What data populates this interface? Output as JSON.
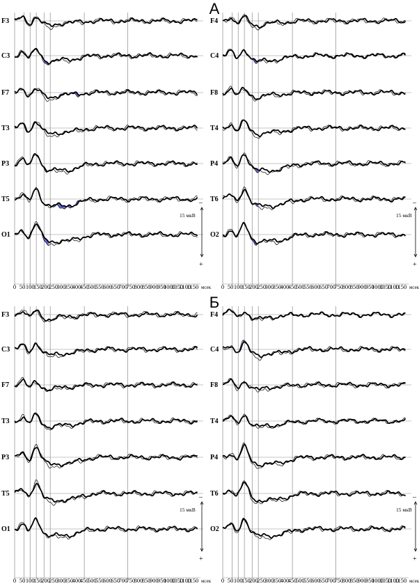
{
  "chart_data": {
    "type": "line",
    "xlim": [
      0,
      1200
    ],
    "x_ticks": [
      0,
      50,
      100,
      150,
      200,
      250,
      300,
      350,
      400,
      450,
      500,
      550,
      600,
      650,
      700,
      750,
      800,
      850,
      900,
      950,
      1000,
      1050,
      1100,
      1150
    ],
    "x_unit": "мсек",
    "marker_lines_ms": [
      60,
      100,
      140,
      190,
      230,
      450,
      730
    ],
    "scale_text": "15 мкВ",
    "polarity_top": "–",
    "polarity_bottom": "+",
    "sections": [
      {
        "label": "А",
        "panels": [
          {
            "side": "left",
            "channels": [
              {
                "name": "F3",
                "shade": []
              },
              {
                "name": "C3",
                "shade": [
                  [
                    190,
                    230
                  ]
                ]
              },
              {
                "name": "F7",
                "shade": [
                  [
                    280,
                    440
                  ]
                ]
              },
              {
                "name": "T3",
                "shade": []
              },
              {
                "name": "P3",
                "shade": [
                  [
                    170,
                    220
                  ]
                ]
              },
              {
                "name": "T5",
                "shade": [
                  [
                    230,
                    420
                  ]
                ]
              },
              {
                "name": "O1",
                "shade": [
                  [
                    150,
                    220
                  ]
                ]
              }
            ]
          },
          {
            "side": "right",
            "channels": [
              {
                "name": "F4",
                "shade": []
              },
              {
                "name": "C4",
                "shade": [
                  [
                    160,
                    230
                  ]
                ]
              },
              {
                "name": "F8",
                "shade": []
              },
              {
                "name": "T4",
                "shade": []
              },
              {
                "name": "P4",
                "shade": [
                  [
                    190,
                    230
                  ]
                ]
              },
              {
                "name": "T6",
                "shade": [
                  [
                    190,
                    230
                  ]
                ]
              },
              {
                "name": "O2",
                "shade": [
                  [
                    150,
                    230
                  ]
                ]
              }
            ]
          }
        ]
      },
      {
        "label": "Б",
        "panels": [
          {
            "side": "left",
            "channels": [
              {
                "name": "F3",
                "shade": []
              },
              {
                "name": "C3",
                "shade": []
              },
              {
                "name": "F7",
                "shade": []
              },
              {
                "name": "T3",
                "shade": [
                  [
                    100,
                    150
                  ]
                ]
              },
              {
                "name": "P3",
                "shade": []
              },
              {
                "name": "T5",
                "shade": []
              },
              {
                "name": "O1",
                "shade": []
              }
            ]
          },
          {
            "side": "right",
            "channels": [
              {
                "name": "F4",
                "shade": []
              },
              {
                "name": "C4",
                "shade": [
                  [
                    130,
                    170
                  ]
                ]
              },
              {
                "name": "F8",
                "shade": [
                  [
                    120,
                    170
                  ]
                ]
              },
              {
                "name": "T4",
                "shade": []
              },
              {
                "name": "P4",
                "shade": []
              },
              {
                "name": "T6",
                "shade": []
              },
              {
                "name": "O2",
                "shade": []
              }
            ]
          }
        ]
      }
    ],
    "colors": {
      "trace": "#000000",
      "shade": "#5a5ae0",
      "grid": "#8a8a8a"
    }
  }
}
